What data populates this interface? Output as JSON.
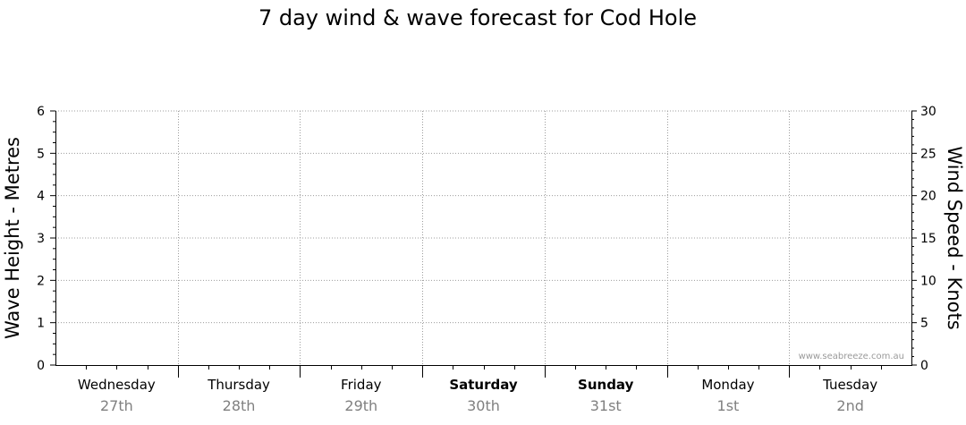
{
  "chart_data": {
    "type": "line",
    "title": "7 day wind & wave forecast for Cod Hole",
    "ylabel_left": "Wave Height - Metres",
    "ylabel_right": "Wind Speed - Knots",
    "ylim_left": [
      0,
      6
    ],
    "ylim_right": [
      0,
      30
    ],
    "left_ticks": [
      "0",
      "1",
      "2",
      "3",
      "4",
      "5",
      "6"
    ],
    "right_ticks": [
      "0",
      "5",
      "10",
      "15",
      "20",
      "25",
      "30"
    ],
    "grid": true,
    "days": [
      {
        "name": "Wednesday",
        "date": "27th",
        "bold": false
      },
      {
        "name": "Thursday",
        "date": "28th",
        "bold": false
      },
      {
        "name": "Friday",
        "date": "29th",
        "bold": false
      },
      {
        "name": "Saturday",
        "date": "30th",
        "bold": true
      },
      {
        "name": "Sunday",
        "date": "31st",
        "bold": true
      },
      {
        "name": "Monday",
        "date": "1st",
        "bold": false
      },
      {
        "name": "Tuesday",
        "date": "2nd",
        "bold": false
      }
    ],
    "series": [],
    "watermark": "www.seabreeze.com.au"
  }
}
